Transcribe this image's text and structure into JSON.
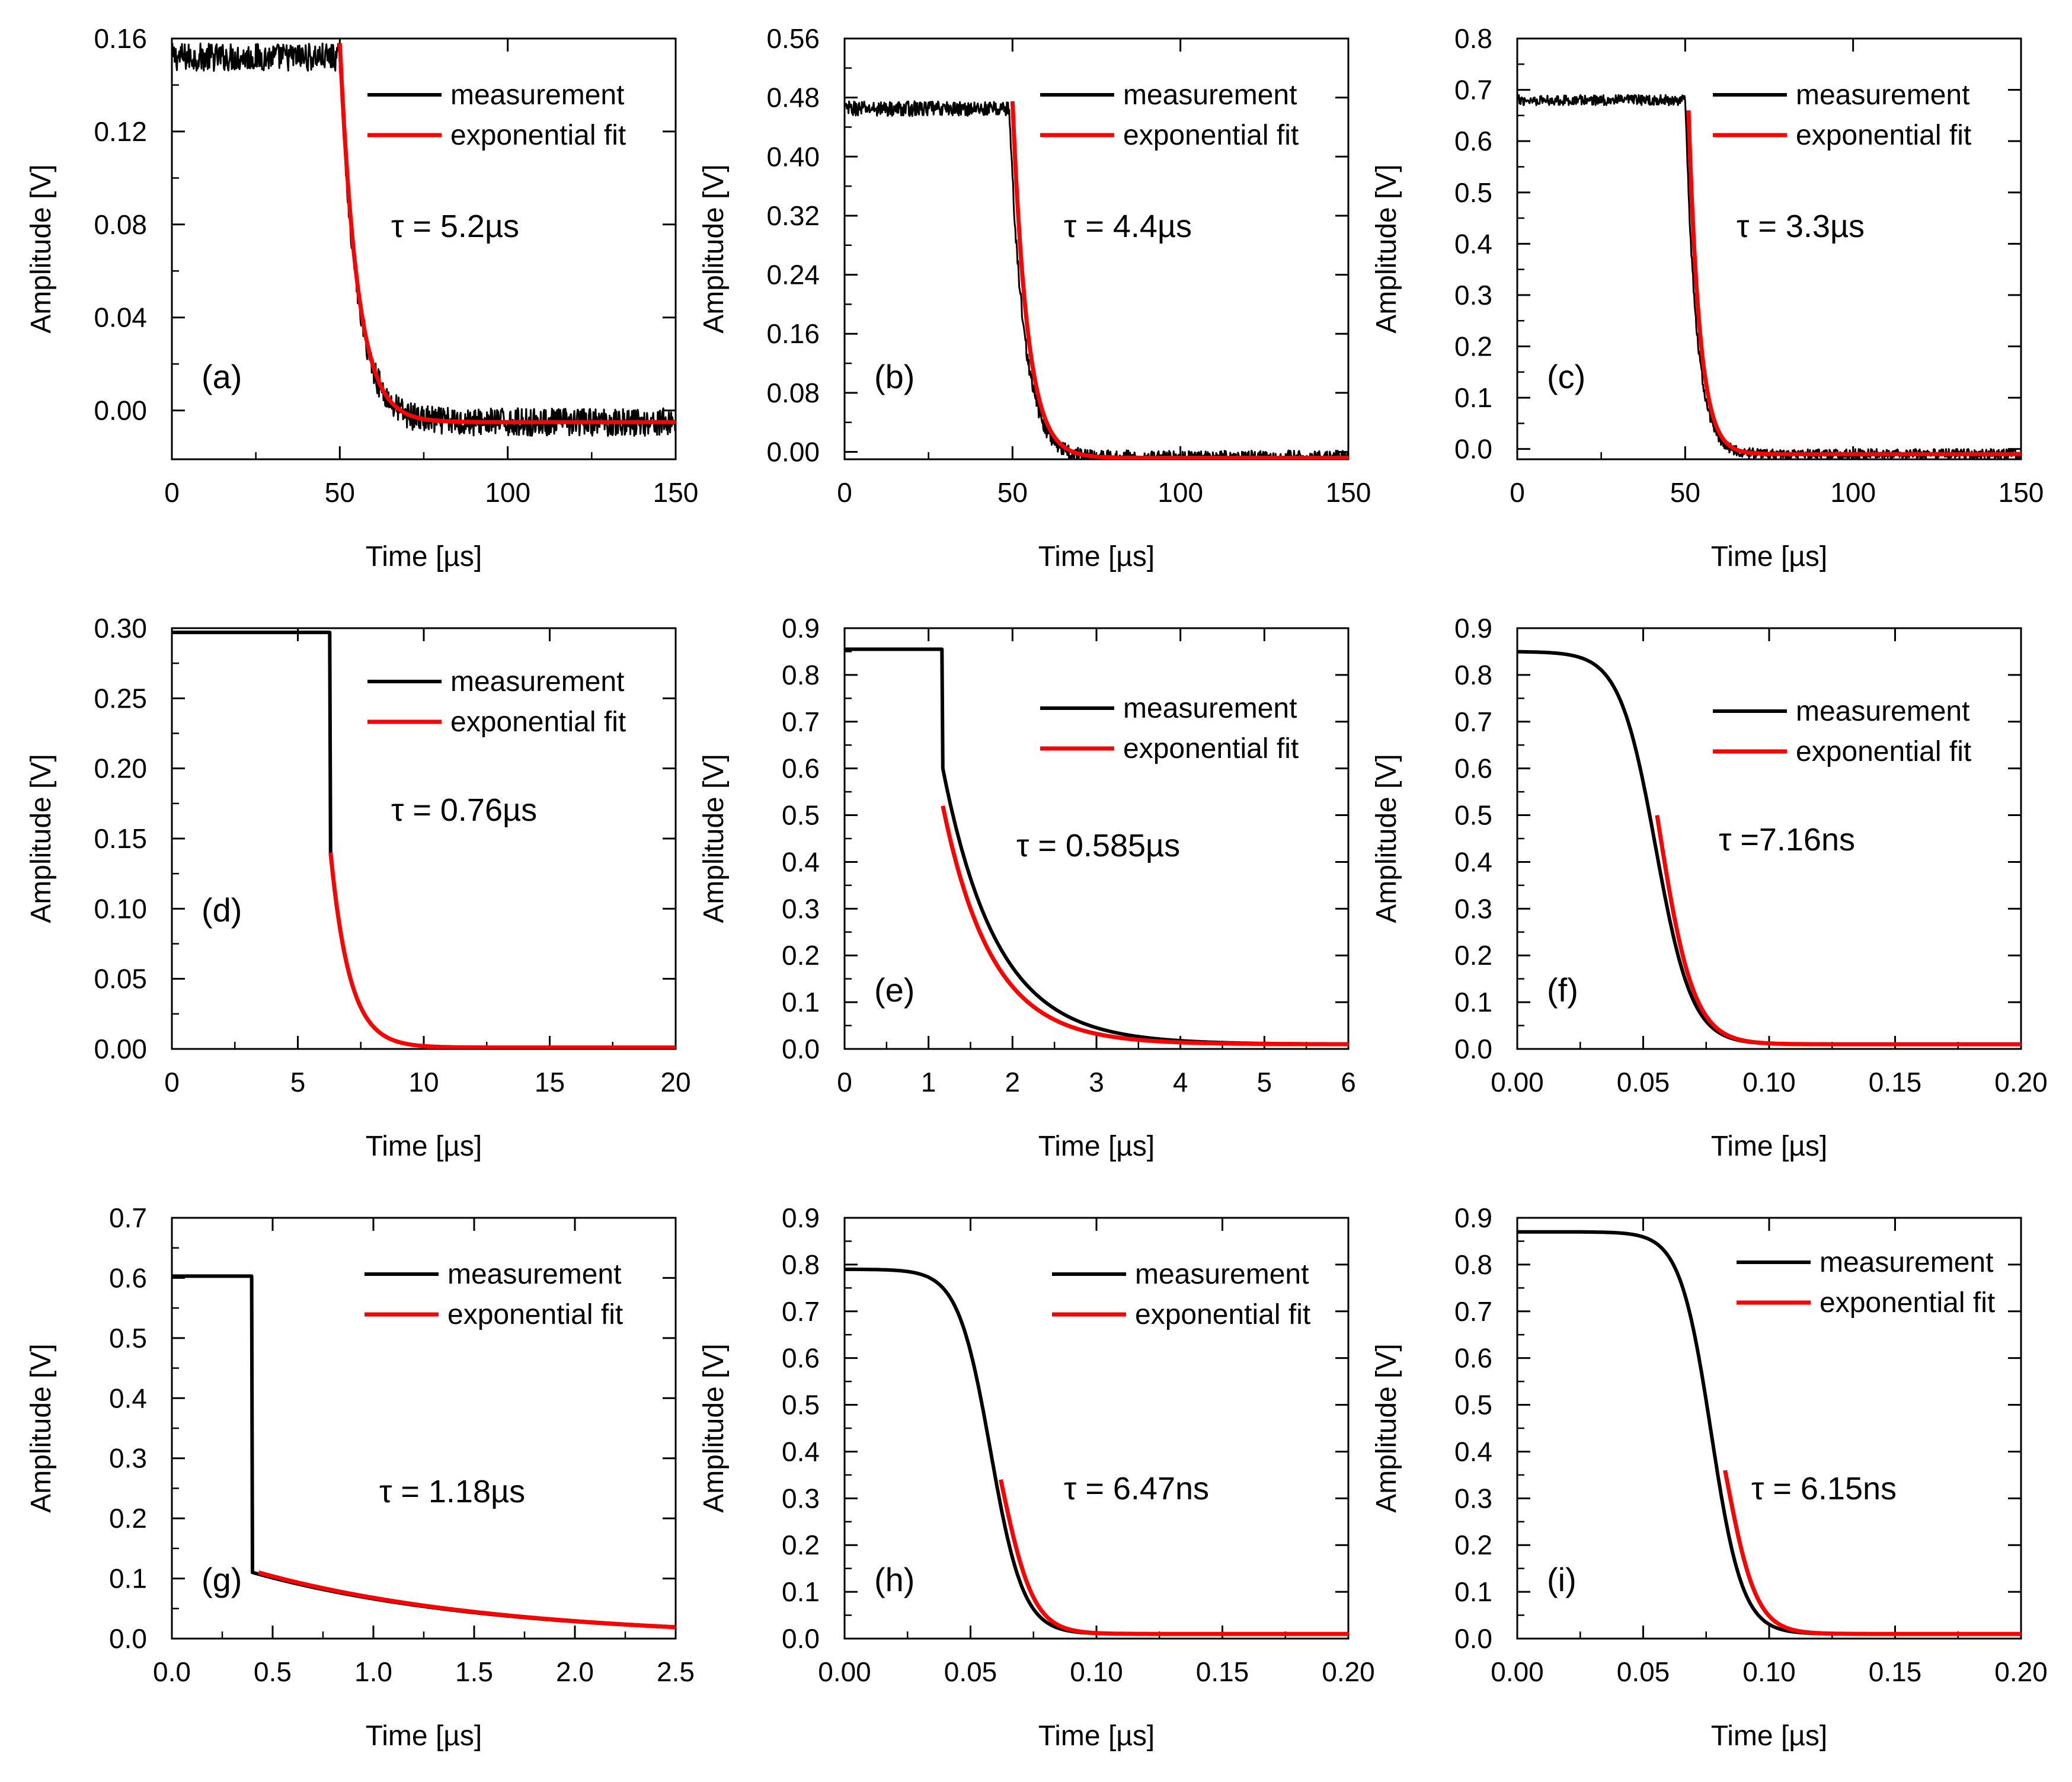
{
  "figure": {
    "legend": {
      "measurement": "measurement",
      "fit": "exponential fit"
    },
    "colors": {
      "measurement": "#000000",
      "fit": "#ff0000",
      "axis": "#000000"
    }
  },
  "chart_data": [
    {
      "panel": "(a)",
      "type": "line",
      "xlabel": "Time [µs]",
      "ylabel": "Amplitude [V]",
      "xlim": [
        0,
        150
      ],
      "ylim": [
        -0.021,
        0.16
      ],
      "xticks": [
        "0",
        "50",
        "100",
        "150"
      ],
      "xtick_values": [
        0,
        50,
        100,
        150
      ],
      "yticks": [
        "0.00",
        "0.04",
        "0.08",
        "0.12",
        "0.16"
      ],
      "ytick_values": [
        0,
        0.04,
        0.08,
        0.12,
        0.16
      ],
      "tau": "τ = 5.2µs",
      "series": [
        {
          "name": "measurement",
          "high": 0.152,
          "low": -0.005,
          "t0": 50,
          "tc": 5.2,
          "shape": "exp",
          "noise": 0.006,
          "x": [
            0,
            150
          ]
        },
        {
          "name": "exponential fit",
          "start": 0.158,
          "low": -0.005,
          "t0": 50,
          "tc": 5.2,
          "shape": "exp",
          "x": [
            50,
            150
          ]
        }
      ]
    },
    {
      "panel": "(b)",
      "type": "line",
      "xlabel": "Time [µs]",
      "ylabel": "Amplitude [V]",
      "xlim": [
        0,
        150
      ],
      "ylim": [
        -0.01,
        0.56
      ],
      "xticks": [
        "0",
        "50",
        "100",
        "150"
      ],
      "xtick_values": [
        0,
        50,
        100,
        150
      ],
      "yticks": [
        "0.00",
        "0.08",
        "0.16",
        "0.24",
        "0.32",
        "0.40",
        "0.48",
        "0.56"
      ],
      "ytick_values": [
        0,
        0.08,
        0.16,
        0.24,
        0.32,
        0.4,
        0.48,
        0.56
      ],
      "tau": "τ = 4.4µs",
      "series": [
        {
          "name": "measurement",
          "high": 0.465,
          "low": -0.008,
          "t0": 49,
          "tc": 4.4,
          "shape": "exp",
          "noise": 0.01,
          "x": [
            0,
            150
          ]
        },
        {
          "name": "exponential fit",
          "start": 0.475,
          "low": -0.008,
          "t0": 50,
          "tc": 4.4,
          "shape": "exp",
          "x": [
            50,
            150
          ]
        }
      ]
    },
    {
      "panel": "(c)",
      "type": "line",
      "xlabel": "Time [µs]",
      "ylabel": "Amplitude [V]",
      "xlim": [
        0,
        150
      ],
      "ylim": [
        -0.02,
        0.8
      ],
      "xticks": [
        "0",
        "50",
        "100",
        "150"
      ],
      "xtick_values": [
        0,
        50,
        100,
        150
      ],
      "yticks": [
        "0.0",
        "0.1",
        "0.2",
        "0.3",
        "0.4",
        "0.5",
        "0.6",
        "0.7",
        "0.8"
      ],
      "ytick_values": [
        0,
        0.1,
        0.2,
        0.3,
        0.4,
        0.5,
        0.6,
        0.7,
        0.8
      ],
      "tau": "τ = 3.3µs",
      "series": [
        {
          "name": "measurement",
          "high": 0.68,
          "low": -0.01,
          "t0": 50,
          "tc": 3.3,
          "shape": "exp",
          "noise": 0.01,
          "x": [
            0,
            150
          ]
        },
        {
          "name": "exponential fit",
          "start": 0.66,
          "low": -0.01,
          "t0": 51,
          "tc": 3.3,
          "shape": "exp",
          "x": [
            51,
            150
          ]
        }
      ]
    },
    {
      "panel": "(d)",
      "type": "line",
      "xlabel": "Time [µs]",
      "ylabel": "Amplitude [V]",
      "xlim": [
        0,
        20
      ],
      "ylim": [
        0,
        0.3
      ],
      "xticks": [
        "0",
        "5",
        "10",
        "15",
        "20"
      ],
      "xtick_values": [
        0,
        5,
        10,
        15,
        20
      ],
      "yticks": [
        "0.00",
        "0.05",
        "0.10",
        "0.15",
        "0.20",
        "0.25",
        "0.30"
      ],
      "ytick_values": [
        0,
        0.05,
        0.1,
        0.15,
        0.2,
        0.25,
        0.3
      ],
      "tau": "τ = 0.76µs",
      "series": [
        {
          "name": "measurement",
          "high": 0.297,
          "low": 0.001,
          "t0": 6.3,
          "tc": 0.76,
          "shape": "step",
          "drop": 0.14,
          "x": [
            0,
            20
          ]
        },
        {
          "name": "exponential fit",
          "start": 0.14,
          "low": 0.001,
          "t0": 6.3,
          "tc": 0.76,
          "shape": "exp",
          "x": [
            6.3,
            20
          ]
        }
      ]
    },
    {
      "panel": "(e)",
      "type": "line",
      "xlabel": "Time [µs]",
      "ylabel": "Amplitude [V]",
      "xlim": [
        0,
        6
      ],
      "ylim": [
        0,
        0.9
      ],
      "xticks": [
        "0",
        "1",
        "2",
        "3",
        "4",
        "5",
        "6"
      ],
      "xtick_values": [
        0,
        1,
        2,
        3,
        4,
        5,
        6
      ],
      "yticks": [
        "0.0",
        "0.1",
        "0.2",
        "0.3",
        "0.4",
        "0.5",
        "0.6",
        "0.7",
        "0.8",
        "0.9"
      ],
      "ytick_values": [
        0,
        0.1,
        0.2,
        0.3,
        0.4,
        0.5,
        0.6,
        0.7,
        0.8,
        0.9
      ],
      "tau": "τ = 0.585µs",
      "series": [
        {
          "name": "measurement",
          "high": 0.855,
          "low": 0.01,
          "t0": 1.17,
          "tc": 0.65,
          "shape": "step",
          "drop": 0.6,
          "x": [
            0,
            6
          ]
        },
        {
          "name": "exponential fit",
          "start": 0.52,
          "low": 0.01,
          "t0": 1.17,
          "tc": 0.585,
          "shape": "exp",
          "x": [
            1.17,
            6
          ]
        }
      ]
    },
    {
      "panel": "(f)",
      "type": "line",
      "xlabel": "Time [µs]",
      "ylabel": "Amplitude [V]",
      "xlim": [
        0,
        0.2
      ],
      "ylim": [
        0,
        0.9
      ],
      "xticks": [
        "0.00",
        "0.05",
        "0.10",
        "0.15",
        "0.20"
      ],
      "xtick_values": [
        0,
        0.05,
        0.1,
        0.15,
        0.2
      ],
      "yticks": [
        "0.0",
        "0.1",
        "0.2",
        "0.3",
        "0.4",
        "0.5",
        "0.6",
        "0.7",
        "0.8",
        "0.9"
      ],
      "ytick_values": [
        0,
        0.1,
        0.2,
        0.3,
        0.4,
        0.5,
        0.6,
        0.7,
        0.8,
        0.9
      ],
      "tau": "τ =7.16ns",
      "series": [
        {
          "name": "measurement",
          "high": 0.85,
          "low": 0.01,
          "t0": 0.055,
          "tc": 0.0072,
          "shape": "sigmoid",
          "x": [
            0,
            0.2
          ]
        },
        {
          "name": "exponential fit",
          "start": 0.5,
          "low": 0.01,
          "t0": 0.0555,
          "tc": 0.00716,
          "shape": "sigtail",
          "x": [
            0.0555,
            0.2
          ]
        }
      ]
    },
    {
      "panel": "(g)",
      "type": "line",
      "xlabel": "Time [µs]",
      "ylabel": "Amplitude [V]",
      "xlim": [
        0,
        2.5
      ],
      "ylim": [
        0,
        0.7
      ],
      "xticks": [
        "0.0",
        "0.5",
        "1.0",
        "1.5",
        "2.0",
        "2.5"
      ],
      "xtick_values": [
        0,
        0.5,
        1.0,
        1.5,
        2.0,
        2.5
      ],
      "yticks": [
        "0.0",
        "0.1",
        "0.2",
        "0.3",
        "0.4",
        "0.5",
        "0.6",
        "0.7"
      ],
      "ytick_values": [
        0,
        0.1,
        0.2,
        0.3,
        0.4,
        0.5,
        0.6,
        0.7
      ],
      "tau": "τ = 1.18µs",
      "series": [
        {
          "name": "measurement",
          "high": 0.603,
          "low": 0.0,
          "t0": 0.4,
          "tc": 1.18,
          "shape": "step",
          "drop": 0.11,
          "x": [
            0,
            2.5
          ]
        },
        {
          "name": "exponential fit",
          "start": 0.11,
          "low": 0.0,
          "t0": 0.43,
          "tc": 1.18,
          "shape": "exp",
          "x": [
            0.43,
            2.5
          ]
        }
      ]
    },
    {
      "panel": "(h)",
      "type": "line",
      "xlabel": "Time [µs]",
      "ylabel": "Amplitude [V]",
      "xlim": [
        0,
        0.2
      ],
      "ylim": [
        0,
        0.9
      ],
      "xticks": [
        "0.00",
        "0.05",
        "0.10",
        "0.15",
        "0.20"
      ],
      "xtick_values": [
        0,
        0.05,
        0.1,
        0.15,
        0.2
      ],
      "yticks": [
        "0.0",
        "0.1",
        "0.2",
        "0.3",
        "0.4",
        "0.5",
        "0.6",
        "0.7",
        "0.8",
        "0.9"
      ],
      "ytick_values": [
        0,
        0.1,
        0.2,
        0.3,
        0.4,
        0.5,
        0.6,
        0.7,
        0.8,
        0.9
      ],
      "tau": "τ = 6.47ns",
      "series": [
        {
          "name": "measurement",
          "high": 0.79,
          "low": 0.01,
          "t0": 0.058,
          "tc": 0.0065,
          "shape": "sigmoid",
          "x": [
            0,
            0.2
          ]
        },
        {
          "name": "exponential fit",
          "start": 0.34,
          "low": 0.01,
          "t0": 0.062,
          "tc": 0.00647,
          "shape": "sigtail",
          "x": [
            0.062,
            0.2
          ]
        }
      ]
    },
    {
      "panel": "(i)",
      "type": "line",
      "xlabel": "Time [µs]",
      "ylabel": "Amplitude [V]",
      "xlim": [
        0,
        0.2
      ],
      "ylim": [
        0,
        0.9
      ],
      "xticks": [
        "0.00",
        "0.05",
        "0.10",
        "0.15",
        "0.20"
      ],
      "xtick_values": [
        0,
        0.05,
        0.1,
        0.15,
        0.2
      ],
      "yticks": [
        "0.0",
        "0.1",
        "0.2",
        "0.3",
        "0.4",
        "0.5",
        "0.6",
        "0.7",
        "0.8",
        "0.9"
      ],
      "ytick_values": [
        0,
        0.1,
        0.2,
        0.3,
        0.4,
        0.5,
        0.6,
        0.7,
        0.8,
        0.9
      ],
      "tau": "τ = 6.15ns",
      "series": [
        {
          "name": "measurement",
          "high": 0.87,
          "low": 0.01,
          "t0": 0.077,
          "tc": 0.0062,
          "shape": "sigmoid",
          "x": [
            0,
            0.125
          ]
        },
        {
          "name": "exponential fit",
          "start": 0.36,
          "low": 0.01,
          "t0": 0.0825,
          "tc": 0.00615,
          "shape": "sigtail",
          "x": [
            0.0825,
            0.2
          ]
        }
      ]
    }
  ]
}
